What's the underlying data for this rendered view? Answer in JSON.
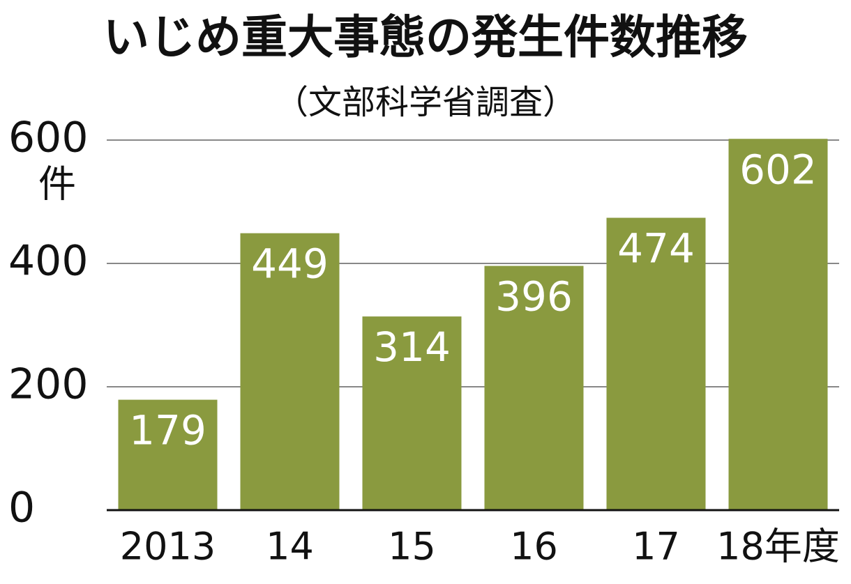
{
  "chart_data": {
    "type": "bar",
    "title": "いじめ重大事態の発生件数推移",
    "subtitle": "（文部科学省調査）",
    "y_unit": "件",
    "categories": [
      "2013",
      "14",
      "15",
      "16",
      "17",
      "18年度"
    ],
    "values": [
      179,
      449,
      314,
      396,
      474,
      602
    ],
    "color": "#8a9a3f",
    "ylim": [
      0,
      600
    ],
    "yticks": [
      0,
      200,
      400,
      600
    ],
    "grid": true
  }
}
